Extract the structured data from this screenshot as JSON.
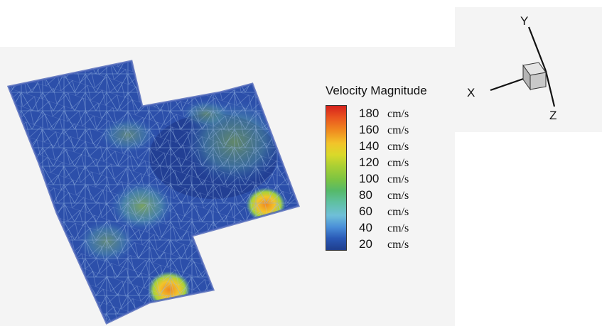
{
  "legend": {
    "title": "Velocity Magnitude",
    "entries": [
      {
        "value": "180",
        "unit": "cm/s"
      },
      {
        "value": "160",
        "unit": "cm/s"
      },
      {
        "value": "140",
        "unit": "cm/s"
      },
      {
        "value": "120",
        "unit": "cm/s"
      },
      {
        "value": "100",
        "unit": "cm/s"
      },
      {
        "value": "80",
        "unit": "cm/s"
      },
      {
        "value": "60",
        "unit": "cm/s"
      },
      {
        "value": "40",
        "unit": "cm/s"
      },
      {
        "value": "20",
        "unit": "cm/s"
      }
    ]
  },
  "axes_triad": {
    "x_label": "X",
    "y_label": "Y",
    "z_label": "Z"
  },
  "colors": {
    "low": "#24409a",
    "mid_low": "#3f7fd0",
    "mid": "#6cc3a8",
    "mid_high": "#a6d23a",
    "high": "#f08a1f",
    "max": "#d6221c"
  }
}
